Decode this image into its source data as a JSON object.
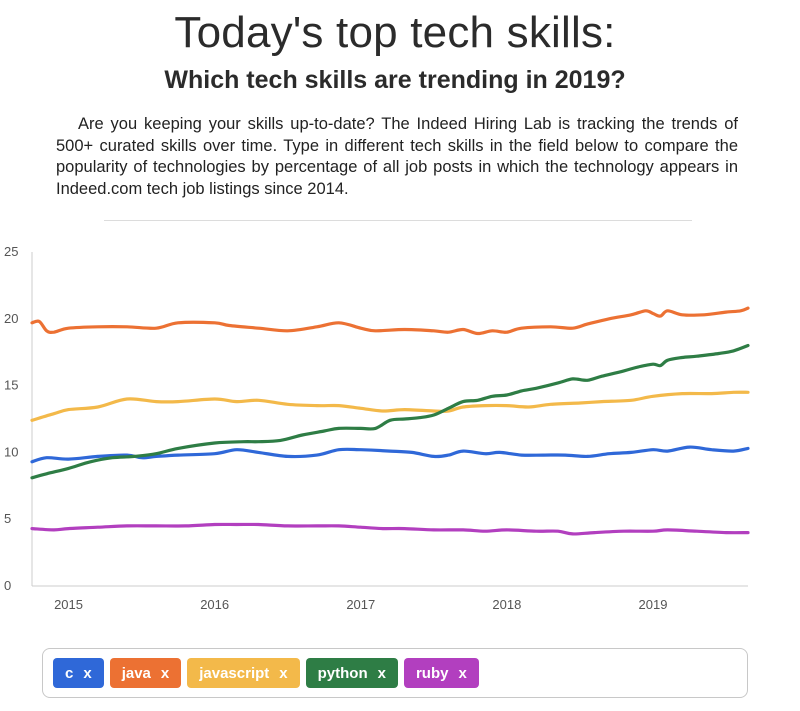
{
  "header": {
    "title": "Today's top tech skills:",
    "subtitle": "Which tech skills are trending in 2019?",
    "intro": "Are you keeping your skills up-to-date? The Indeed Hiring Lab is tracking the trends of 500+ curated skills over time. Type in different tech skills in the field below to compare the popularity of technologies by percentage of all job posts in which the technology appears in Indeed.com tech job listings since 2014."
  },
  "chart_data": {
    "type": "line",
    "title": "",
    "xlabel": "",
    "ylabel": "",
    "xlim": [
      2014.75,
      2019.65
    ],
    "ylim": [
      0,
      25
    ],
    "x_ticks": [
      "2015",
      "2016",
      "2017",
      "2018",
      "2019"
    ],
    "x_tick_values": [
      2015,
      2016,
      2017,
      2018,
      2019
    ],
    "y_ticks": [
      "0",
      "5",
      "10",
      "15",
      "20",
      "25"
    ],
    "y_tick_values": [
      0,
      5,
      10,
      15,
      20,
      25
    ],
    "grid": false,
    "legend": "bottom",
    "series": [
      {
        "name": "c",
        "color": "#2f68d8",
        "x": [
          2014.75,
          2014.85,
          2015.0,
          2015.2,
          2015.4,
          2015.5,
          2015.6,
          2015.75,
          2016.0,
          2016.15,
          2016.3,
          2016.5,
          2016.7,
          2016.85,
          2017.0,
          2017.2,
          2017.35,
          2017.5,
          2017.6,
          2017.7,
          2017.85,
          2017.95,
          2018.1,
          2018.25,
          2018.4,
          2018.55,
          2018.7,
          2018.85,
          2019.0,
          2019.1,
          2019.25,
          2019.4,
          2019.55,
          2019.65
        ],
        "values": [
          9.3,
          9.6,
          9.5,
          9.7,
          9.8,
          9.6,
          9.7,
          9.8,
          9.9,
          10.2,
          10.0,
          9.7,
          9.8,
          10.2,
          10.2,
          10.1,
          10.0,
          9.7,
          9.8,
          10.1,
          9.9,
          10.0,
          9.8,
          9.8,
          9.8,
          9.7,
          9.9,
          10.0,
          10.2,
          10.1,
          10.4,
          10.2,
          10.1,
          10.3
        ]
      },
      {
        "name": "java",
        "color": "#ec7133",
        "x": [
          2014.75,
          2014.8,
          2014.85,
          2014.9,
          2015.0,
          2015.2,
          2015.4,
          2015.6,
          2015.75,
          2016.0,
          2016.1,
          2016.3,
          2016.5,
          2016.7,
          2016.85,
          2017.0,
          2017.1,
          2017.3,
          2017.5,
          2017.6,
          2017.7,
          2017.8,
          2017.9,
          2018.0,
          2018.1,
          2018.3,
          2018.45,
          2018.55,
          2018.7,
          2018.85,
          2018.95,
          2019.0,
          2019.05,
          2019.1,
          2019.2,
          2019.35,
          2019.5,
          2019.6,
          2019.65
        ],
        "values": [
          19.7,
          19.8,
          19.1,
          19.0,
          19.3,
          19.4,
          19.4,
          19.3,
          19.7,
          19.7,
          19.5,
          19.3,
          19.1,
          19.4,
          19.7,
          19.3,
          19.1,
          19.2,
          19.1,
          19.0,
          19.2,
          18.9,
          19.1,
          19.0,
          19.3,
          19.4,
          19.3,
          19.6,
          20.0,
          20.3,
          20.6,
          20.4,
          20.2,
          20.6,
          20.3,
          20.3,
          20.5,
          20.6,
          20.8
        ]
      },
      {
        "name": "javascript",
        "color": "#f3b94a",
        "x": [
          2014.75,
          2014.9,
          2015.0,
          2015.2,
          2015.4,
          2015.6,
          2015.75,
          2016.0,
          2016.15,
          2016.3,
          2016.5,
          2016.7,
          2016.85,
          2017.0,
          2017.15,
          2017.3,
          2017.5,
          2017.6,
          2017.7,
          2017.85,
          2018.0,
          2018.15,
          2018.3,
          2018.5,
          2018.65,
          2018.85,
          2019.0,
          2019.2,
          2019.4,
          2019.55,
          2019.65
        ],
        "values": [
          12.4,
          12.9,
          13.2,
          13.4,
          14.0,
          13.8,
          13.8,
          14.0,
          13.8,
          13.9,
          13.6,
          13.5,
          13.5,
          13.3,
          13.1,
          13.2,
          13.1,
          13.1,
          13.4,
          13.5,
          13.5,
          13.4,
          13.6,
          13.7,
          13.8,
          13.9,
          14.2,
          14.4,
          14.4,
          14.5,
          14.5
        ]
      },
      {
        "name": "python",
        "color": "#2e7d45",
        "x": [
          2014.75,
          2014.85,
          2015.0,
          2015.15,
          2015.3,
          2015.45,
          2015.6,
          2015.75,
          2016.0,
          2016.2,
          2016.3,
          2016.45,
          2016.6,
          2016.75,
          2016.85,
          2017.0,
          2017.1,
          2017.2,
          2017.3,
          2017.4,
          2017.5,
          2017.6,
          2017.7,
          2017.8,
          2017.9,
          2018.0,
          2018.1,
          2018.2,
          2018.35,
          2018.45,
          2018.55,
          2018.65,
          2018.8,
          2018.9,
          2019.0,
          2019.05,
          2019.1,
          2019.2,
          2019.3,
          2019.45,
          2019.55,
          2019.65
        ],
        "values": [
          8.1,
          8.4,
          8.8,
          9.3,
          9.6,
          9.7,
          9.9,
          10.3,
          10.7,
          10.8,
          10.8,
          10.9,
          11.3,
          11.6,
          11.8,
          11.8,
          11.8,
          12.4,
          12.5,
          12.6,
          12.8,
          13.3,
          13.8,
          13.9,
          14.2,
          14.3,
          14.6,
          14.8,
          15.2,
          15.5,
          15.4,
          15.7,
          16.1,
          16.4,
          16.6,
          16.5,
          16.9,
          17.1,
          17.2,
          17.4,
          17.6,
          18.0
        ]
      },
      {
        "name": "ruby",
        "color": "#b23fbf",
        "x": [
          2014.75,
          2014.9,
          2015.0,
          2015.2,
          2015.4,
          2015.6,
          2015.8,
          2016.0,
          2016.15,
          2016.3,
          2016.5,
          2016.7,
          2016.85,
          2017.0,
          2017.15,
          2017.3,
          2017.5,
          2017.7,
          2017.85,
          2018.0,
          2018.2,
          2018.35,
          2018.45,
          2018.6,
          2018.8,
          2019.0,
          2019.1,
          2019.3,
          2019.5,
          2019.65
        ],
        "values": [
          4.3,
          4.2,
          4.3,
          4.4,
          4.5,
          4.5,
          4.5,
          4.6,
          4.6,
          4.6,
          4.5,
          4.5,
          4.5,
          4.4,
          4.3,
          4.3,
          4.2,
          4.2,
          4.1,
          4.2,
          4.1,
          4.1,
          3.9,
          4.0,
          4.1,
          4.1,
          4.2,
          4.1,
          4.0,
          4.0
        ]
      }
    ]
  },
  "skills": {
    "chips": [
      {
        "label": "c",
        "remove": "x",
        "color": "#2f68d8"
      },
      {
        "label": "java",
        "remove": "x",
        "color": "#ec7133"
      },
      {
        "label": "javascript",
        "remove": "x",
        "color": "#f3b94a"
      },
      {
        "label": "python",
        "remove": "x",
        "color": "#2e7d45"
      },
      {
        "label": "ruby",
        "remove": "x",
        "color": "#b23fbf"
      }
    ]
  }
}
